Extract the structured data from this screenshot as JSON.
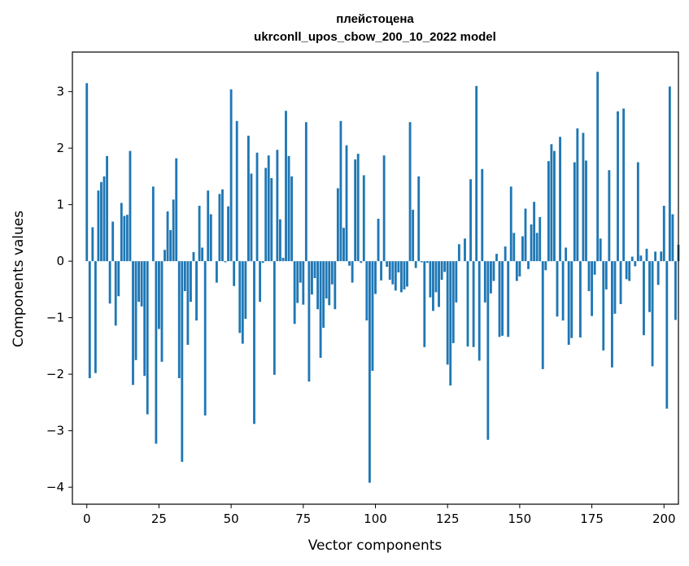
{
  "chart_data": {
    "type": "bar",
    "title_line1": "плейстоцена",
    "title_line2": "ukrconll_upos_cbow_200_10_2022 model",
    "xlabel": "Vector components",
    "ylabel": "Components values",
    "xlim": [
      -5,
      205
    ],
    "ylim": [
      -4.3,
      3.7
    ],
    "xticks": [
      0,
      25,
      50,
      75,
      100,
      125,
      150,
      175,
      200
    ],
    "yticks": [
      -4,
      -3,
      -2,
      -1,
      0,
      1,
      2,
      3
    ],
    "bar_color": "#1f77b4",
    "grid": false,
    "values": [
      3.15,
      -2.07,
      0.6,
      -1.98,
      1.25,
      1.4,
      1.5,
      1.86,
      -0.75,
      0.7,
      -1.14,
      -0.62,
      1.03,
      0.8,
      0.82,
      1.95,
      -2.19,
      -1.75,
      -0.72,
      -0.8,
      -2.03,
      -2.71,
      0.0,
      1.32,
      -3.23,
      -1.2,
      -1.78,
      0.2,
      0.88,
      0.55,
      1.09,
      1.82,
      -2.07,
      -3.55,
      -0.53,
      -1.48,
      -0.72,
      0.16,
      -1.05,
      0.98,
      0.24,
      -2.73,
      1.25,
      0.83,
      0.0,
      -0.38,
      1.19,
      1.27,
      -0.02,
      0.97,
      3.04,
      -0.44,
      2.48,
      -1.27,
      -1.46,
      -1.02,
      2.22,
      1.55,
      -2.88,
      1.92,
      -0.72,
      -0.03,
      1.65,
      1.87,
      1.47,
      -2.01,
      1.97,
      0.74,
      0.06,
      2.66,
      1.86,
      1.5,
      -1.11,
      -0.74,
      -0.38,
      -0.77,
      2.46,
      -2.13,
      -0.59,
      -0.3,
      -0.85,
      -1.71,
      -1.18,
      -0.66,
      -0.78,
      -0.41,
      -0.85,
      1.29,
      2.48,
      0.59,
      2.05,
      -0.08,
      -0.38,
      1.8,
      1.9,
      -0.03,
      1.52,
      -1.05,
      -3.92,
      -1.94,
      -0.58,
      0.75,
      -0.34,
      1.87,
      -0.1,
      -0.33,
      -0.41,
      -0.52,
      -0.2,
      -0.55,
      -0.5,
      -0.45,
      2.46,
      0.91,
      -0.12,
      1.5,
      -0.02,
      -1.52,
      -0.03,
      -0.64,
      -0.88,
      -0.55,
      -0.81,
      -0.33,
      -0.19,
      -1.83,
      -2.2,
      -1.45,
      -0.73,
      0.3,
      0.0,
      0.4,
      -1.51,
      1.45,
      -1.52,
      3.1,
      -1.76,
      1.63,
      -0.73,
      -3.16,
      -0.57,
      -0.35,
      0.13,
      -1.34,
      -1.32,
      0.26,
      -1.34,
      1.32,
      0.5,
      -0.35,
      -0.27,
      0.44,
      0.93,
      -0.14,
      0.65,
      1.05,
      0.5,
      0.78,
      -1.91,
      -0.16,
      1.77,
      2.07,
      1.95,
      -0.98,
      2.2,
      -1.05,
      0.24,
      -1.48,
      -1.36,
      1.75,
      2.35,
      -1.35,
      2.27,
      1.78,
      -0.53,
      -0.97,
      -0.24,
      3.35,
      0.4,
      -1.58,
      -0.5,
      1.61,
      -1.88,
      -0.93,
      2.65,
      -0.76,
      2.7,
      -0.32,
      -0.35,
      0.08,
      -0.09,
      1.75,
      0.1,
      -1.31,
      0.22,
      -0.9,
      -1.86,
      0.17,
      -0.42,
      0.17,
      0.98,
      -2.61,
      3.09,
      0.83,
      -1.04,
      0.29
    ]
  }
}
